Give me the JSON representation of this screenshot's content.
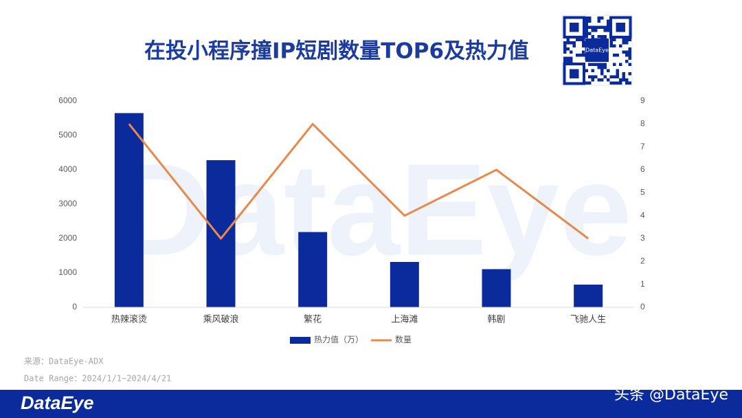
{
  "chart_data": {
    "type": "bar",
    "title": "在投小程序撞IP短剧数量TOP6及热力值",
    "categories": [
      "热辣滚烫",
      "乘风破浪",
      "繁花",
      "上海滩",
      "韩剧",
      "飞驰人生"
    ],
    "series": [
      {
        "name": "热力值（万）",
        "color": "#0b2b9c",
        "type": "bar",
        "values": [
          5650,
          4280,
          2190,
          1320,
          1110,
          660
        ]
      },
      {
        "name": "数量",
        "color": "#e8894a",
        "type": "line",
        "axis": "y2",
        "values": [
          8,
          3,
          8,
          4,
          6,
          3
        ]
      }
    ],
    "ylim": [
      0,
      6000
    ],
    "yticks": [
      0,
      1000,
      2000,
      3000,
      4000,
      5000,
      6000
    ],
    "y2lim": [
      0,
      9
    ],
    "y2ticks": [
      0,
      1,
      2,
      3,
      4,
      5,
      6,
      7,
      8,
      9
    ],
    "grid": false,
    "legend": "bottom"
  },
  "source": "来源：DataEye-ADX",
  "date_range": "Date Range：2024/1/1~2024/4/21",
  "brand": "DataEye",
  "qr_label": "DataEye",
  "background_watermark": "DataEye",
  "platform_watermark": "头条 @DataEye"
}
